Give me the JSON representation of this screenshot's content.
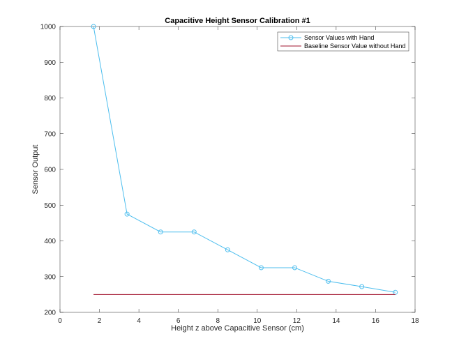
{
  "chart_data": {
    "type": "line",
    "title": "Capacitive Height Sensor Calibration #1",
    "xlabel": "Height z above Capacitive Sensor (cm)",
    "ylabel": "Sensor Output",
    "xlim": [
      0,
      18
    ],
    "ylim": [
      200,
      1000
    ],
    "xticks": [
      "0",
      "2",
      "4",
      "6",
      "8",
      "10",
      "12",
      "14",
      "16",
      "18"
    ],
    "yticks": [
      "200",
      "300",
      "400",
      "500",
      "600",
      "700",
      "800",
      "900",
      "1000"
    ],
    "grid": false,
    "legend_position": "top-right",
    "series": [
      {
        "name": "Sensor Values with Hand",
        "color": "#4dbeee",
        "marker": "circle",
        "x": [
          1.7,
          3.4,
          5.1,
          6.8,
          8.5,
          10.2,
          11.9,
          13.6,
          15.3,
          17.0
        ],
        "y": [
          1000,
          475,
          425,
          425,
          375,
          325,
          325,
          287,
          272,
          256
        ]
      },
      {
        "name": "Baseline Sensor Value without Hand",
        "color": "#a2142f",
        "marker": "none",
        "x": [
          1.7,
          17.0
        ],
        "y": [
          250,
          250
        ]
      }
    ]
  }
}
